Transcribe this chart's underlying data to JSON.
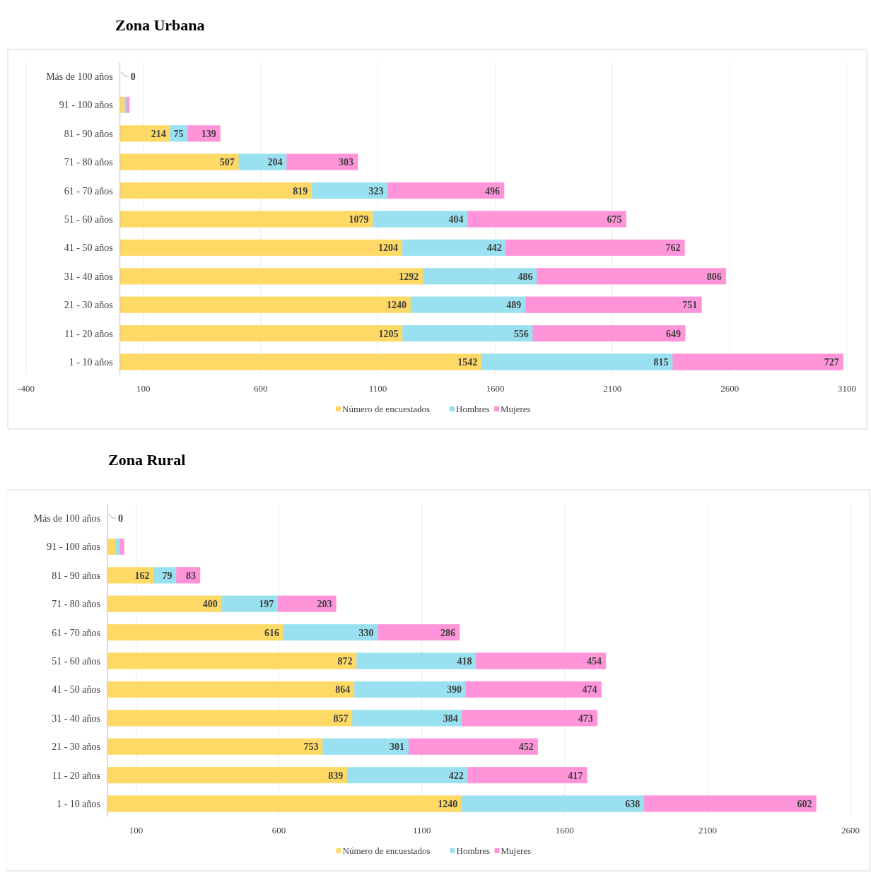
{
  "chart_data": [
    {
      "type": "bar",
      "title": "Zona Urbana",
      "orientation": "horizontal",
      "stacked": true,
      "grid": "x",
      "legend": "bottom",
      "categories": [
        "Más de 100 años",
        "91 - 100 años",
        "81 - 90 años",
        "71 - 80 años",
        "61 - 70 años",
        "51 - 60 años",
        "41 - 50 años",
        "31 - 40 años",
        "21 - 30 años",
        "11 - 20 años",
        "1 - 10 años"
      ],
      "xlim": [
        -400,
        3100
      ],
      "xticks": [
        -400,
        100,
        600,
        1100,
        1600,
        2100,
        2600,
        3100
      ],
      "series": [
        {
          "name": "Número de encuestados",
          "color": "#ffd966",
          "values": [
            0,
            20,
            214,
            507,
            819,
            1079,
            1204,
            1292,
            1240,
            1205,
            1542
          ],
          "value_labels": [
            null,
            null,
            "214",
            "507",
            "819",
            "1079",
            "1204",
            "1292",
            "1240",
            "1205",
            "1542"
          ]
        },
        {
          "name": "Hombres",
          "color": "#99e0f0",
          "values": [
            0,
            8,
            75,
            204,
            323,
            404,
            442,
            486,
            489,
            556,
            815
          ],
          "value_labels": [
            "0",
            null,
            "75",
            "204",
            "323",
            "404",
            "442",
            "486",
            "489",
            "556",
            "815"
          ]
        },
        {
          "name": "Mujeres",
          "color": "#ff94d9",
          "values": [
            0,
            12,
            139,
            303,
            496,
            675,
            762,
            806,
            751,
            649,
            727
          ],
          "value_labels": [
            null,
            null,
            "139",
            "303",
            "496",
            "675",
            "762",
            "806",
            "751",
            "649",
            "727"
          ]
        }
      ]
    },
    {
      "type": "bar",
      "title": "Zona Rural",
      "orientation": "horizontal",
      "stacked": true,
      "grid": "x",
      "legend": "bottom",
      "categories": [
        "Más de 100 años",
        "91 - 100 años",
        "81 - 90 años",
        "71 - 80 años",
        "61 - 70 años",
        "51 - 60 años",
        "41 - 50 años",
        "31 - 40 años",
        "21 - 30 años",
        "11 - 20 años",
        "1 - 10 años"
      ],
      "xlim": [
        0,
        2600
      ],
      "xticks": [
        100,
        600,
        1100,
        1600,
        2100,
        2600
      ],
      "series": [
        {
          "name": "Número de encuestados",
          "color": "#ffd966",
          "values": [
            0,
            29,
            162,
            400,
            616,
            872,
            864,
            857,
            753,
            839,
            1240
          ],
          "value_labels": [
            null,
            null,
            "162",
            "400",
            "616",
            "872",
            "864",
            "857",
            "753",
            "839",
            "1240"
          ]
        },
        {
          "name": "Hombres",
          "color": "#99e0f0",
          "values": [
            0,
            15,
            79,
            197,
            330,
            418,
            390,
            384,
            301,
            422,
            638
          ],
          "value_labels": [
            "0",
            null,
            "79",
            "197",
            "330",
            "418",
            "390",
            "384",
            "301",
            "422",
            "638"
          ]
        },
        {
          "name": "Mujeres",
          "color": "#ff94d9",
          "values": [
            0,
            14,
            83,
            203,
            286,
            454,
            474,
            473,
            452,
            417,
            602
          ],
          "value_labels": [
            null,
            null,
            "83",
            "203",
            "286",
            "454",
            "474",
            "473",
            "452",
            "417",
            "602"
          ]
        }
      ]
    }
  ]
}
